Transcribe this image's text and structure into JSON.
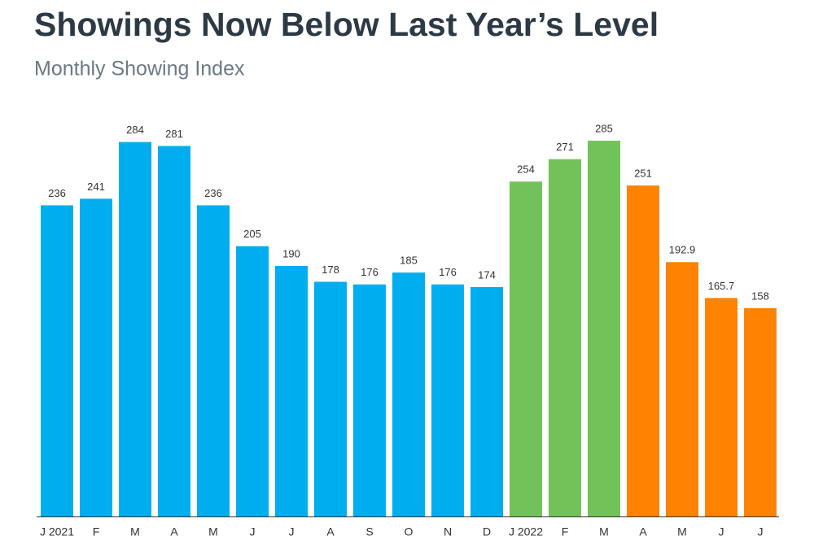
{
  "chart_data": {
    "type": "bar",
    "title": "Showings Now Below Last Year’s Level",
    "subtitle": "Monthly Showing Index",
    "categories": [
      "J 2021",
      "F",
      "M",
      "A",
      "M",
      "J",
      "J",
      "A",
      "S",
      "O",
      "N",
      "D",
      "J 2022",
      "F",
      "M",
      "A",
      "M",
      "J",
      "J"
    ],
    "values": [
      236,
      241,
      284,
      281,
      236,
      205,
      190,
      178,
      176,
      185,
      176,
      174,
      254,
      271,
      285,
      251,
      192.9,
      165.7,
      158
    ],
    "colors": [
      "#00aeef",
      "#00aeef",
      "#00aeef",
      "#00aeef",
      "#00aeef",
      "#00aeef",
      "#00aeef",
      "#00aeef",
      "#00aeef",
      "#00aeef",
      "#00aeef",
      "#00aeef",
      "#72c25a",
      "#72c25a",
      "#72c25a",
      "#ff8200",
      "#ff8200",
      "#ff8200",
      "#ff8200"
    ]
  }
}
